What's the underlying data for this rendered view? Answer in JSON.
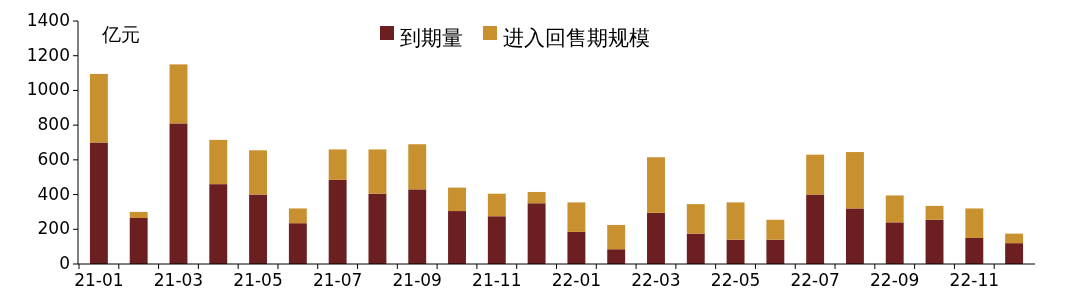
{
  "chart_data": {
    "type": "bar",
    "stacked": true,
    "ylabel": "亿元",
    "legend": "top",
    "categories": [
      "21-01",
      null,
      "21-03",
      null,
      "21-05",
      null,
      "21-07",
      null,
      "21-09",
      null,
      "21-11",
      null,
      "22-01",
      null,
      "22-03",
      null,
      "22-05",
      null,
      "22-07",
      null,
      "22-09",
      null,
      "22-11",
      null
    ],
    "series": [
      {
        "name": "到期量",
        "color": "#6b1f20",
        "values": [
          700,
          265,
          810,
          460,
          400,
          235,
          485,
          405,
          430,
          305,
          275,
          350,
          185,
          85,
          295,
          175,
          140,
          140,
          400,
          320,
          240,
          255,
          150,
          120
        ]
      },
      {
        "name": "进入回售期规模",
        "color": "#c8902e",
        "values": [
          395,
          35,
          340,
          255,
          255,
          85,
          175,
          255,
          260,
          135,
          130,
          65,
          170,
          140,
          320,
          170,
          215,
          115,
          230,
          325,
          155,
          80,
          170,
          55
        ]
      }
    ],
    "ylim": [
      0,
      1400
    ],
    "yticks": [
      0,
      200,
      400,
      600,
      800,
      1000,
      1200,
      1400
    ]
  }
}
